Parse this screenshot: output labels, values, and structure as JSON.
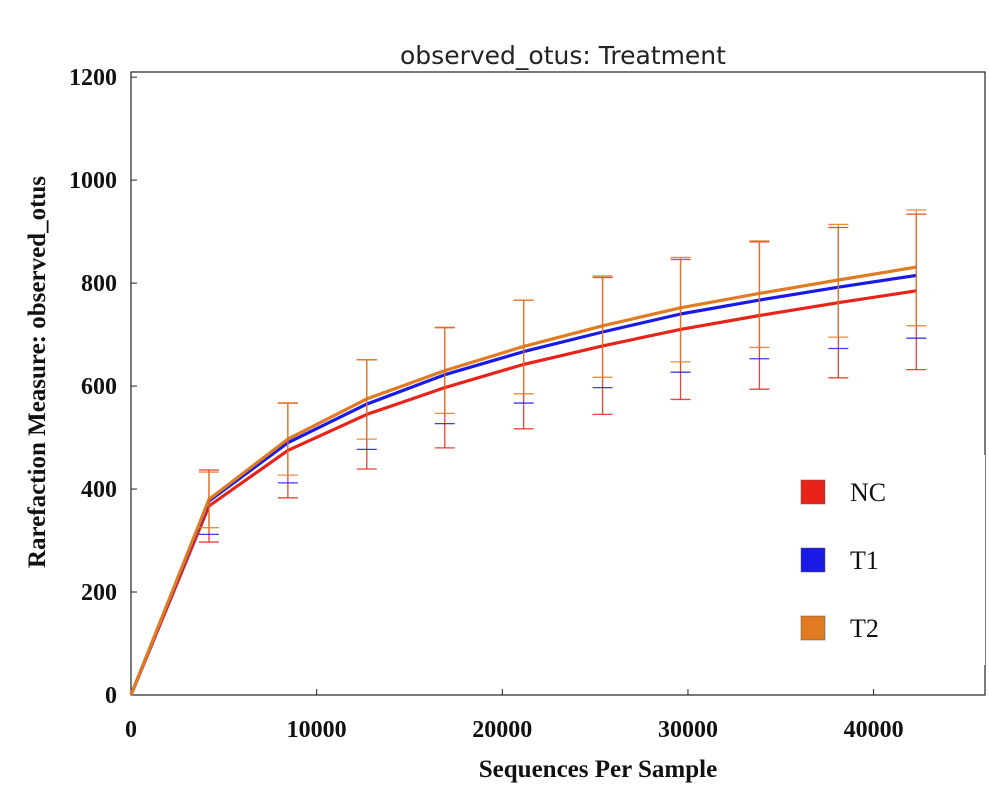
{
  "chart_data": {
    "type": "line",
    "title": "observed_otus: Treatment",
    "xlabel": "Sequences Per Sample",
    "ylabel": "Rarefaction Measure: observed_otus",
    "xlim": [
      0,
      46000
    ],
    "ylim": [
      0,
      1210
    ],
    "xticks": [
      0,
      10000,
      20000,
      30000,
      40000
    ],
    "yticks": [
      0,
      200,
      400,
      600,
      800,
      1000,
      1200
    ],
    "grid": false,
    "legend_position": "bottom-right",
    "x": [
      0,
      4200,
      8450,
      12700,
      16900,
      21150,
      25400,
      29600,
      33850,
      38100,
      42300
    ],
    "series": [
      {
        "name": "NC",
        "color": "#e8231a",
        "values": [
          0,
          367,
          475,
          545,
          597,
          642,
          678,
          710,
          737,
          762,
          785
        ],
        "error_upper": [
          null,
          437,
          567,
          651,
          714,
          767,
          811,
          846,
          880,
          908,
          934
        ],
        "error_lower": [
          null,
          297,
          383,
          439,
          480,
          517,
          545,
          574,
          594,
          616,
          632
        ]
      },
      {
        "name": "T1",
        "color": "#1a1ae6",
        "values": [
          0,
          377,
          490,
          565,
          622,
          667,
          705,
          740,
          767,
          792,
          815
        ],
        "error_upper": [
          null,
          null,
          null,
          null,
          null,
          null,
          null,
          null,
          null,
          null,
          null
        ],
        "error_lower": [
          null,
          312,
          412,
          477,
          527,
          567,
          597,
          627,
          653,
          673,
          693
        ]
      },
      {
        "name": "T2",
        "color": "#e07b22",
        "values": [
          0,
          380,
          497,
          575,
          630,
          677,
          717,
          752,
          780,
          806,
          831
        ],
        "error_upper": [
          null,
          433,
          567,
          651,
          713,
          767,
          814,
          850,
          882,
          914,
          942
        ],
        "error_lower": [
          null,
          325,
          427,
          497,
          547,
          585,
          617,
          647,
          675,
          695,
          717
        ]
      }
    ]
  }
}
